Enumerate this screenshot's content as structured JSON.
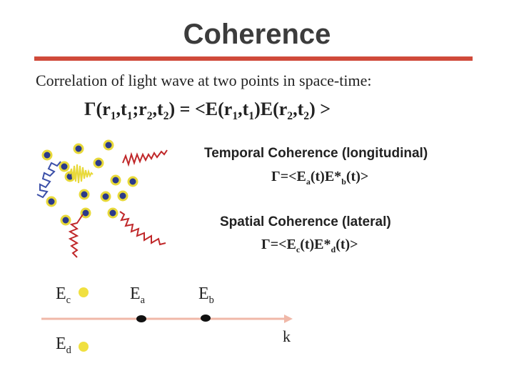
{
  "title": "Coherence",
  "intro": "Correlation of light wave at two points in space-time:",
  "equation_main": "Γ(r₁,t₁;r₂,t₂) = <E(r₁,t₁)E(r₂,t₂) >",
  "temporal": {
    "heading": "Temporal Coherence (longitudinal)",
    "formula": "Γ=<Eₐ(t)E*_b(t)>"
  },
  "spatial": {
    "heading": "Spatial Coherence (lateral)",
    "formula": "Γ=<E_c(t)E*_d(t)>"
  },
  "diagram": {
    "label_ec": "E_c",
    "label_ea": "E_a",
    "label_eb": "E_b",
    "label_ed": "E_d",
    "axis_label": "k"
  },
  "colors": {
    "rule": "#d04a3a",
    "atom_fill": "#2b3a8a",
    "atom_ring": "#e8d93a",
    "wave_blue": "#3b4fa8",
    "wave_yellow": "#e8d93a",
    "wave_red": "#c0282a",
    "axis": "#f0b8a8",
    "point": "#111111",
    "yellow_dot": "#f0e040"
  }
}
